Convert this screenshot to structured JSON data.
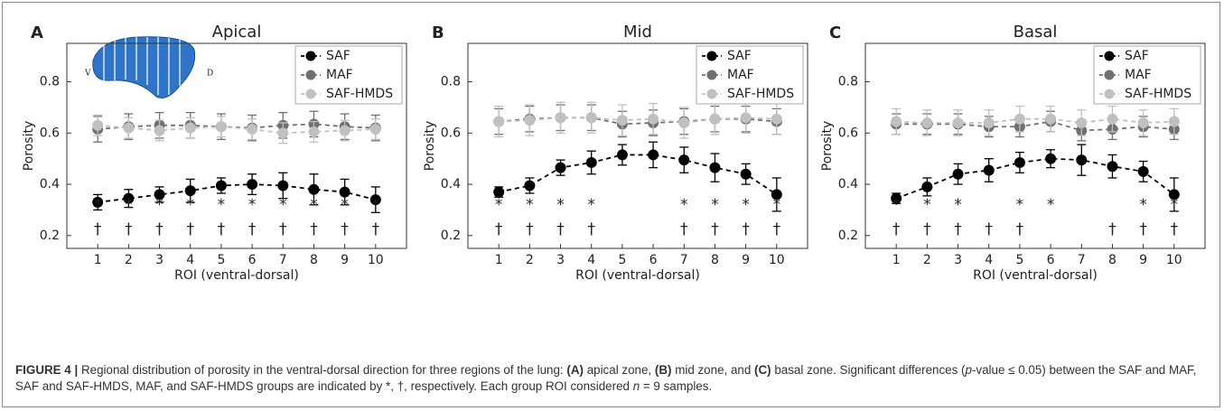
{
  "chart_data": [
    {
      "type": "line",
      "panel_label": "A",
      "title": "Apical",
      "xlabel": "ROI (ventral-dorsal)",
      "ylabel": "Porosity",
      "x": [
        1,
        2,
        3,
        4,
        5,
        6,
        7,
        8,
        9,
        10
      ],
      "xlim": [
        0,
        11
      ],
      "xticks": [
        1,
        2,
        3,
        4,
        5,
        6,
        7,
        8,
        9,
        10
      ],
      "ylim": [
        0.15,
        0.95
      ],
      "yticks": [
        0.2,
        0.4,
        0.6,
        0.8
      ],
      "legend": "upper right",
      "inset_labels": [
        "V",
        "D"
      ],
      "series": [
        {
          "name": "SAF",
          "color": "#000000",
          "values": [
            0.33,
            0.345,
            0.36,
            0.375,
            0.395,
            0.4,
            0.395,
            0.38,
            0.37,
            0.34
          ],
          "errors": [
            0.03,
            0.035,
            0.03,
            0.045,
            0.03,
            0.04,
            0.05,
            0.06,
            0.05,
            0.05
          ]
        },
        {
          "name": "MAF",
          "color": "#707070",
          "values": [
            0.615,
            0.625,
            0.63,
            0.63,
            0.625,
            0.62,
            0.63,
            0.635,
            0.625,
            0.62
          ],
          "errors": [
            0.05,
            0.05,
            0.05,
            0.05,
            0.05,
            0.05,
            0.05,
            0.05,
            0.05,
            0.05
          ]
        },
        {
          "name": "SAF-HMDS",
          "color": "#c0c0c0",
          "values": [
            0.63,
            0.62,
            0.61,
            0.62,
            0.625,
            0.615,
            0.6,
            0.605,
            0.61,
            0.615
          ],
          "errors": [
            0.04,
            0.04,
            0.04,
            0.04,
            0.04,
            0.04,
            0.04,
            0.04,
            0.04,
            0.04
          ]
        }
      ],
      "star_marks": [
        "*",
        "*",
        "*",
        "*",
        "*",
        "*",
        "*",
        "*",
        "*",
        "*"
      ],
      "dagger_marks": [
        "†",
        "†",
        "†",
        "†",
        "†",
        "†",
        "†",
        "†",
        "†",
        "†"
      ]
    },
    {
      "type": "line",
      "panel_label": "B",
      "title": "Mid",
      "xlabel": "ROI (ventral-dorsal)",
      "ylabel": "Porosity",
      "x": [
        1,
        2,
        3,
        4,
        5,
        6,
        7,
        8,
        9,
        10
      ],
      "xlim": [
        0,
        11
      ],
      "xticks": [
        1,
        2,
        3,
        4,
        5,
        6,
        7,
        8,
        9,
        10
      ],
      "ylim": [
        0.15,
        0.95
      ],
      "yticks": [
        0.2,
        0.4,
        0.6,
        0.8
      ],
      "legend": "upper right",
      "series": [
        {
          "name": "SAF",
          "color": "#000000",
          "values": [
            0.37,
            0.395,
            0.465,
            0.485,
            0.515,
            0.515,
            0.495,
            0.465,
            0.44,
            0.36
          ],
          "errors": [
            0.02,
            0.03,
            0.03,
            0.045,
            0.04,
            0.05,
            0.05,
            0.055,
            0.04,
            0.065
          ]
        },
        {
          "name": "MAF",
          "color": "#707070",
          "values": [
            0.645,
            0.655,
            0.66,
            0.66,
            0.635,
            0.64,
            0.645,
            0.655,
            0.655,
            0.645
          ],
          "errors": [
            0.05,
            0.05,
            0.05,
            0.05,
            0.05,
            0.05,
            0.05,
            0.05,
            0.05,
            0.05
          ]
        },
        {
          "name": "SAF-HMDS",
          "color": "#c0c0c0",
          "values": [
            0.645,
            0.65,
            0.66,
            0.66,
            0.65,
            0.655,
            0.64,
            0.655,
            0.66,
            0.655
          ],
          "errors": [
            0.06,
            0.06,
            0.06,
            0.06,
            0.06,
            0.06,
            0.06,
            0.06,
            0.06,
            0.06
          ]
        }
      ],
      "star_marks": [
        "*",
        "*",
        "*",
        "*",
        null,
        null,
        "*",
        "*",
        "*",
        "*"
      ],
      "dagger_marks": [
        "†",
        "†",
        "†",
        "†",
        null,
        null,
        "†",
        "†",
        "†",
        "†"
      ]
    },
    {
      "type": "line",
      "panel_label": "C",
      "title": "Basal",
      "xlabel": "ROI (ventral-dorsal)",
      "ylabel": "Porosity",
      "x": [
        1,
        2,
        3,
        4,
        5,
        6,
        7,
        8,
        9,
        10
      ],
      "xlim": [
        0,
        11
      ],
      "xticks": [
        1,
        2,
        3,
        4,
        5,
        6,
        7,
        8,
        9,
        10
      ],
      "ylim": [
        0.15,
        0.95
      ],
      "yticks": [
        0.2,
        0.4,
        0.6,
        0.8
      ],
      "legend": "upper right",
      "series": [
        {
          "name": "SAF",
          "color": "#000000",
          "values": [
            0.345,
            0.39,
            0.44,
            0.455,
            0.485,
            0.5,
            0.495,
            0.47,
            0.45,
            0.36
          ],
          "errors": [
            0.02,
            0.035,
            0.04,
            0.045,
            0.04,
            0.035,
            0.06,
            0.045,
            0.04,
            0.065
          ]
        },
        {
          "name": "MAF",
          "color": "#707070",
          "values": [
            0.635,
            0.635,
            0.635,
            0.625,
            0.625,
            0.645,
            0.61,
            0.615,
            0.625,
            0.615
          ],
          "errors": [
            0.04,
            0.04,
            0.04,
            0.04,
            0.04,
            0.04,
            0.04,
            0.04,
            0.04,
            0.04
          ]
        },
        {
          "name": "SAF-HMDS",
          "color": "#c0c0c0",
          "values": [
            0.645,
            0.64,
            0.64,
            0.64,
            0.655,
            0.655,
            0.64,
            0.655,
            0.64,
            0.645
          ],
          "errors": [
            0.05,
            0.05,
            0.05,
            0.05,
            0.05,
            0.05,
            0.05,
            0.05,
            0.05,
            0.05
          ]
        }
      ],
      "star_marks": [
        "*",
        "*",
        "*",
        null,
        "*",
        "*",
        null,
        null,
        "*",
        "*"
      ],
      "dagger_marks": [
        "†",
        "†",
        "†",
        "†",
        "†",
        null,
        null,
        "†",
        "†",
        "†"
      ]
    }
  ],
  "caption": [
    {
      "text": "FIGURE 4 |",
      "bold": true
    },
    {
      "text": " Regional distribution of porosity in the ventral-dorsal direction for three regions of the lung: "
    },
    {
      "text": "(A)",
      "bold": true
    },
    {
      "text": " apical zone, "
    },
    {
      "text": "(B)",
      "bold": true
    },
    {
      "text": " mid zone, and "
    },
    {
      "text": "(C)",
      "bold": true
    },
    {
      "text": " basal zone. Significant differences ("
    },
    {
      "text": "p",
      "italic": true
    },
    {
      "text": "-value ≤ 0.05) between the SAF and MAF, SAF and SAF-HMDS, MAF, and SAF-HMDS groups are indicated by *, †, respectively. Each group ROI considered "
    },
    {
      "text": "n",
      "italic": true
    },
    {
      "text": " = 9 samples."
    }
  ]
}
